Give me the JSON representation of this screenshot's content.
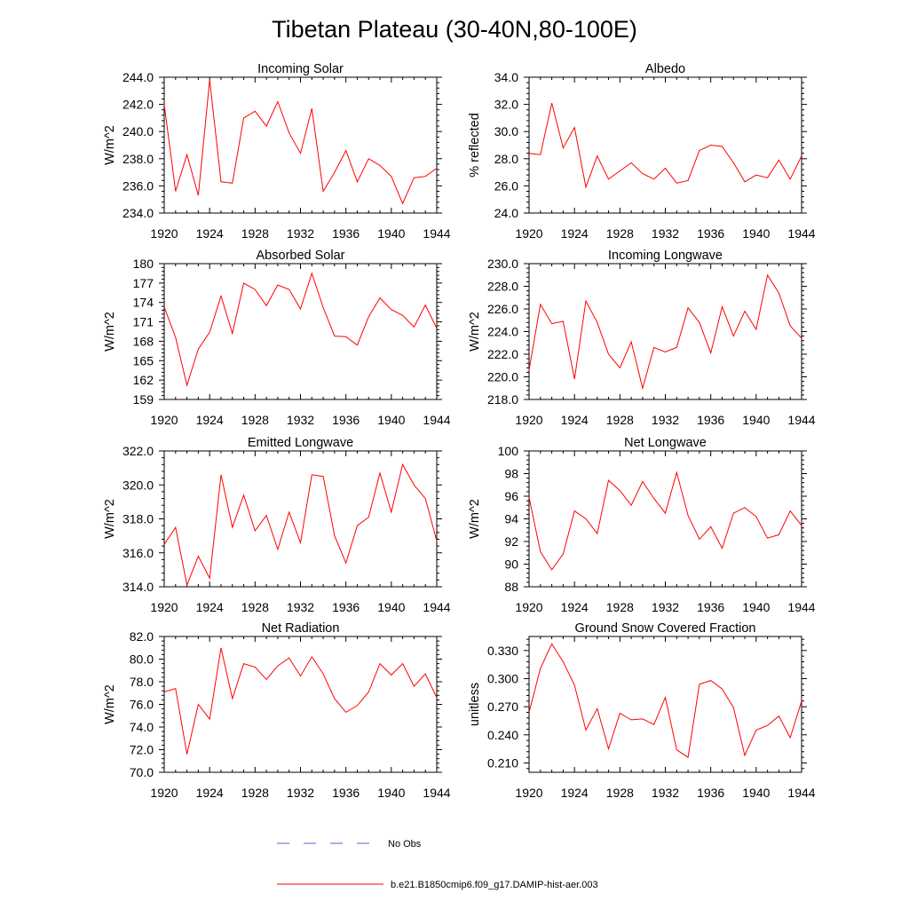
{
  "figure": {
    "title": "Tibetan Plateau (30-40N,80-100E)",
    "legend": [
      {
        "label": "No Obs",
        "color": "#5566cc",
        "style": "dashed"
      },
      {
        "label": "b.e21.B1850cmip6.f09_g17.DAMIP-hist-aer.003",
        "color": "#ff0000",
        "style": "solid"
      }
    ]
  },
  "chart_data": [
    {
      "type": "line",
      "title": "Incoming Solar",
      "ylabel": "W/m^2",
      "xlim": [
        1920,
        1944
      ],
      "ylim": [
        234,
        244
      ],
      "xticks": [
        "1920",
        "1924",
        "1928",
        "1932",
        "1936",
        "1940",
        "1944"
      ],
      "yticks": [
        "234.0",
        "236.0",
        "238.0",
        "240.0",
        "242.0",
        "244.0"
      ],
      "x": [
        1920,
        1921,
        1922,
        1923,
        1924,
        1925,
        1926,
        1927,
        1928,
        1929,
        1930,
        1931,
        1932,
        1933,
        1934,
        1935,
        1936,
        1937,
        1938,
        1939,
        1940,
        1941,
        1942,
        1943,
        1944
      ],
      "series": [
        {
          "name": "b.e21.B1850cmip6.f09_g17.DAMIP-hist-aer.003",
          "color": "#ff0000",
          "values": [
            242.0,
            235.6,
            238.3,
            235.3,
            243.8,
            236.3,
            236.2,
            241.0,
            241.5,
            240.4,
            242.2,
            239.9,
            238.4,
            241.7,
            235.6,
            237.0,
            238.6,
            236.3,
            238.0,
            237.5,
            236.7,
            234.7,
            236.6,
            236.7,
            237.3
          ]
        }
      ]
    },
    {
      "type": "line",
      "title": "Albedo",
      "ylabel": "% reflected",
      "xlim": [
        1920,
        1944
      ],
      "ylim": [
        24,
        34
      ],
      "xticks": [
        "1920",
        "1924",
        "1928",
        "1932",
        "1936",
        "1940",
        "1944"
      ],
      "yticks": [
        "24.0",
        "26.0",
        "28.0",
        "30.0",
        "32.0",
        "34.0"
      ],
      "x": [
        1920,
        1921,
        1922,
        1923,
        1924,
        1925,
        1926,
        1927,
        1928,
        1929,
        1930,
        1931,
        1932,
        1933,
        1934,
        1935,
        1936,
        1937,
        1938,
        1939,
        1940,
        1941,
        1942,
        1943,
        1944
      ],
      "series": [
        {
          "name": "b.e21.B1850cmip6.f09_g17.DAMIP-hist-aer.003",
          "color": "#ff0000",
          "values": [
            28.4,
            28.3,
            32.1,
            28.8,
            30.3,
            25.9,
            28.2,
            26.5,
            27.1,
            27.7,
            26.9,
            26.5,
            27.3,
            26.2,
            26.4,
            28.6,
            29.0,
            28.9,
            27.7,
            26.3,
            26.8,
            26.6,
            27.9,
            26.5,
            28.2
          ]
        }
      ]
    },
    {
      "type": "line",
      "title": "Absorbed Solar",
      "ylabel": "W/m^2",
      "xlim": [
        1920,
        1944
      ],
      "ylim": [
        159,
        180
      ],
      "xticks": [
        "1920",
        "1924",
        "1928",
        "1932",
        "1936",
        "1940",
        "1944"
      ],
      "yticks": [
        "159",
        "162",
        "165",
        "168",
        "171",
        "174",
        "177",
        "180"
      ],
      "x": [
        1920,
        1921,
        1922,
        1923,
        1924,
        1925,
        1926,
        1927,
        1928,
        1929,
        1930,
        1931,
        1932,
        1933,
        1934,
        1935,
        1936,
        1937,
        1938,
        1939,
        1940,
        1941,
        1942,
        1943,
        1944
      ],
      "series": [
        {
          "name": "b.e21.B1850cmip6.f09_g17.DAMIP-hist-aer.003",
          "color": "#ff0000",
          "values": [
            173.3,
            168.6,
            161.2,
            166.8,
            169.4,
            175.0,
            169.2,
            177.0,
            176.0,
            173.5,
            176.7,
            176.0,
            173.0,
            178.5,
            173.2,
            168.8,
            168.7,
            167.4,
            171.8,
            174.7,
            172.9,
            172.0,
            170.2,
            173.6,
            170.0
          ]
        }
      ]
    },
    {
      "type": "line",
      "title": "Incoming Longwave",
      "ylabel": "W/m^2",
      "xlim": [
        1920,
        1944
      ],
      "ylim": [
        218,
        230
      ],
      "xticks": [
        "1920",
        "1924",
        "1928",
        "1932",
        "1936",
        "1940",
        "1944"
      ],
      "yticks": [
        "218.0",
        "220.0",
        "222.0",
        "224.0",
        "226.0",
        "228.0",
        "230.0"
      ],
      "x": [
        1920,
        1921,
        1922,
        1923,
        1924,
        1925,
        1926,
        1927,
        1928,
        1929,
        1930,
        1931,
        1932,
        1933,
        1934,
        1935,
        1936,
        1937,
        1938,
        1939,
        1940,
        1941,
        1942,
        1943,
        1944
      ],
      "series": [
        {
          "name": "b.e21.B1850cmip6.f09_g17.DAMIP-hist-aer.003",
          "color": "#ff0000",
          "values": [
            220.6,
            226.4,
            224.7,
            224.9,
            219.8,
            226.7,
            224.8,
            222.0,
            220.8,
            223.1,
            219.0,
            222.6,
            222.2,
            222.6,
            226.1,
            224.8,
            222.1,
            226.2,
            223.6,
            225.8,
            224.2,
            229.0,
            227.4,
            224.5,
            223.4
          ]
        }
      ]
    },
    {
      "type": "line",
      "title": "Emitted Longwave",
      "ylabel": "W/m^2",
      "xlim": [
        1920,
        1944
      ],
      "ylim": [
        314,
        322
      ],
      "xticks": [
        "1920",
        "1924",
        "1928",
        "1932",
        "1936",
        "1940",
        "1944"
      ],
      "yticks": [
        "314.0",
        "316.0",
        "318.0",
        "320.0",
        "322.0"
      ],
      "x": [
        1920,
        1921,
        1922,
        1923,
        1924,
        1925,
        1926,
        1927,
        1928,
        1929,
        1930,
        1931,
        1932,
        1933,
        1934,
        1935,
        1936,
        1937,
        1938,
        1939,
        1940,
        1941,
        1942,
        1943,
        1944
      ],
      "series": [
        {
          "name": "b.e21.B1850cmip6.f09_g17.DAMIP-hist-aer.003",
          "color": "#ff0000",
          "values": [
            316.5,
            317.5,
            314.1,
            315.8,
            314.5,
            320.6,
            317.5,
            319.4,
            317.3,
            318.2,
            316.2,
            318.4,
            316.6,
            320.6,
            320.5,
            317.0,
            315.4,
            317.6,
            318.1,
            320.7,
            318.4,
            321.2,
            320.0,
            319.2,
            316.7
          ]
        }
      ]
    },
    {
      "type": "line",
      "title": "Net Longwave",
      "ylabel": "W/m^2",
      "xlim": [
        1920,
        1944
      ],
      "ylim": [
        88,
        100
      ],
      "xticks": [
        "1920",
        "1924",
        "1928",
        "1932",
        "1936",
        "1940",
        "1944"
      ],
      "yticks": [
        "88",
        "90",
        "92",
        "94",
        "96",
        "98",
        "100"
      ],
      "x": [
        1920,
        1921,
        1922,
        1923,
        1924,
        1925,
        1926,
        1927,
        1928,
        1929,
        1930,
        1931,
        1932,
        1933,
        1934,
        1935,
        1936,
        1937,
        1938,
        1939,
        1940,
        1941,
        1942,
        1943,
        1944
      ],
      "series": [
        {
          "name": "b.e21.B1850cmip6.f09_g17.DAMIP-hist-aer.003",
          "color": "#ff0000",
          "values": [
            95.9,
            91.1,
            89.5,
            90.9,
            94.7,
            94.0,
            92.7,
            97.4,
            96.5,
            95.2,
            97.3,
            95.8,
            94.5,
            98.1,
            94.3,
            92.2,
            93.3,
            91.4,
            94.5,
            95.0,
            94.2,
            92.3,
            92.6,
            94.7,
            93.4
          ]
        }
      ]
    },
    {
      "type": "line",
      "title": "Net Radiation",
      "ylabel": "W/m^2",
      "xlim": [
        1920,
        1944
      ],
      "ylim": [
        70,
        82
      ],
      "xticks": [
        "1920",
        "1924",
        "1928",
        "1932",
        "1936",
        "1940",
        "1944"
      ],
      "yticks": [
        "70.0",
        "72.0",
        "74.0",
        "76.0",
        "78.0",
        "80.0",
        "82.0"
      ],
      "x": [
        1920,
        1921,
        1922,
        1923,
        1924,
        1925,
        1926,
        1927,
        1928,
        1929,
        1930,
        1931,
        1932,
        1933,
        1934,
        1935,
        1936,
        1937,
        1938,
        1939,
        1940,
        1941,
        1942,
        1943,
        1944
      ],
      "series": [
        {
          "name": "b.e21.B1850cmip6.f09_g17.DAMIP-hist-aer.003",
          "color": "#ff0000",
          "values": [
            77.1,
            77.4,
            71.6,
            76.0,
            74.7,
            81.0,
            76.5,
            79.6,
            79.3,
            78.2,
            79.4,
            80.1,
            78.5,
            80.2,
            78.7,
            76.5,
            75.3,
            75.9,
            77.1,
            79.6,
            78.6,
            79.6,
            77.6,
            78.7,
            76.6
          ]
        }
      ]
    },
    {
      "type": "line",
      "title": "Ground Snow Covered Fraction",
      "ylabel": "unitless",
      "xlim": [
        1920,
        1944
      ],
      "ylim": [
        0.2,
        0.345
      ],
      "xticks": [
        "1920",
        "1924",
        "1928",
        "1932",
        "1936",
        "1940",
        "1944"
      ],
      "yticks": [
        "0.210",
        "0.240",
        "0.270",
        "0.300",
        "0.330"
      ],
      "ytick_values": [
        0.21,
        0.24,
        0.27,
        0.3,
        0.33
      ],
      "x": [
        1920,
        1921,
        1922,
        1923,
        1924,
        1925,
        1926,
        1927,
        1928,
        1929,
        1930,
        1931,
        1932,
        1933,
        1934,
        1935,
        1936,
        1937,
        1938,
        1939,
        1940,
        1941,
        1942,
        1943,
        1944
      ],
      "series": [
        {
          "name": "b.e21.B1850cmip6.f09_g17.DAMIP-hist-aer.003",
          "color": "#ff0000",
          "values": [
            0.264,
            0.311,
            0.337,
            0.318,
            0.293,
            0.245,
            0.268,
            0.225,
            0.263,
            0.256,
            0.257,
            0.251,
            0.28,
            0.224,
            0.216,
            0.294,
            0.298,
            0.289,
            0.269,
            0.218,
            0.245,
            0.25,
            0.26,
            0.237,
            0.276
          ]
        }
      ]
    }
  ]
}
